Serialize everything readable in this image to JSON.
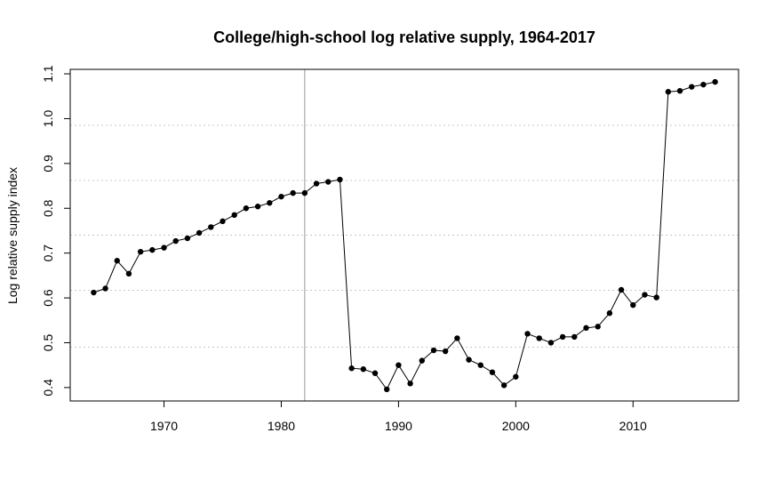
{
  "chart_data": {
    "type": "line",
    "title": "College/high-school log relative supply, 1964-2017",
    "xlabel": "",
    "ylabel": "Log relative supply index",
    "xlim": [
      1962,
      2019
    ],
    "ylim": [
      0.37,
      1.11
    ],
    "xticks": [
      1970,
      1980,
      1990,
      2000,
      2010
    ],
    "yticks": [
      "0.4",
      "0.5",
      "0.6",
      "0.7",
      "0.8",
      "0.9",
      "1.0",
      "1.1"
    ],
    "grid": "dotted horizontal",
    "grid_y": [
      0.49,
      0.617,
      0.74,
      0.862,
      0.985
    ],
    "vline_x": 1982,
    "marker": "filled circle",
    "x": [
      1964,
      1965,
      1966,
      1967,
      1968,
      1969,
      1970,
      1971,
      1972,
      1973,
      1974,
      1975,
      1976,
      1977,
      1978,
      1979,
      1980,
      1981,
      1982,
      1983,
      1984,
      1985,
      1986,
      1987,
      1988,
      1989,
      1990,
      1991,
      1992,
      1993,
      1994,
      1995,
      1996,
      1997,
      1998,
      1999,
      2000,
      2001,
      2002,
      2003,
      2004,
      2005,
      2006,
      2007,
      2008,
      2009,
      2010,
      2011,
      2012,
      2013,
      2014,
      2015,
      2016,
      2017
    ],
    "y": [
      0.612,
      0.621,
      0.683,
      0.654,
      0.703,
      0.707,
      0.712,
      0.727,
      0.733,
      0.745,
      0.758,
      0.771,
      0.785,
      0.8,
      0.804,
      0.812,
      0.826,
      0.834,
      0.834,
      0.855,
      0.859,
      0.864,
      0.443,
      0.441,
      0.432,
      0.396,
      0.45,
      0.409,
      0.46,
      0.483,
      0.481,
      0.51,
      0.462,
      0.45,
      0.434,
      0.405,
      0.424,
      0.52,
      0.51,
      0.5,
      0.513,
      0.513,
      0.533,
      0.536,
      0.566,
      0.618,
      0.584,
      0.607,
      0.601,
      1.06,
      1.062,
      1.071,
      1.076,
      1.082
    ]
  }
}
